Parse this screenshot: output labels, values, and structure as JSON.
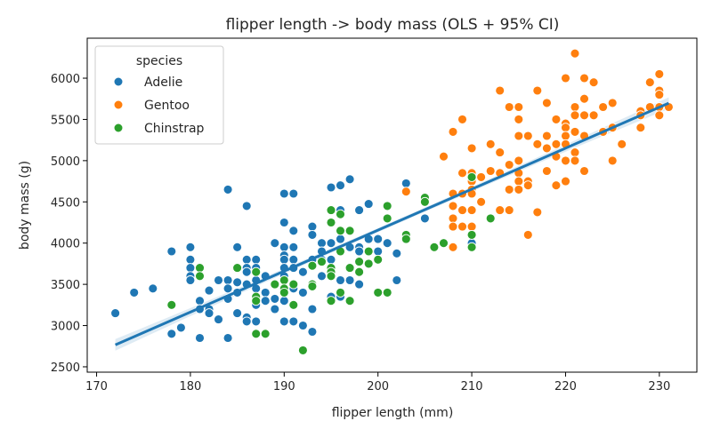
{
  "chart_data": {
    "type": "scatter",
    "title": "flipper length -> body mass (OLS + 95% CI)",
    "xlabel": "flipper length (mm)",
    "ylabel": "body mass (g)",
    "xlim": [
      169,
      234
    ],
    "ylim": [
      2435,
      6485
    ],
    "xticks": [
      170,
      180,
      190,
      200,
      210,
      220,
      230
    ],
    "yticks": [
      2500,
      3000,
      3500,
      4000,
      4500,
      5000,
      5500,
      6000
    ],
    "grid": false,
    "legend": {
      "title": "species",
      "placement": "top-left"
    },
    "series": [
      {
        "name": "Adelie",
        "color": "#1f77b4",
        "points": [
          [
            172,
            3150
          ],
          [
            174,
            3400
          ],
          [
            176,
            3450
          ],
          [
            178,
            3900
          ],
          [
            178,
            2900
          ],
          [
            179,
            2975
          ],
          [
            180,
            3950
          ],
          [
            180,
            3800
          ],
          [
            180,
            3700
          ],
          [
            180,
            3600
          ],
          [
            180,
            3550
          ],
          [
            181,
            3300
          ],
          [
            181,
            3200
          ],
          [
            181,
            2850
          ],
          [
            182,
            3425
          ],
          [
            182,
            3200
          ],
          [
            182,
            3150
          ],
          [
            183,
            3550
          ],
          [
            183,
            3075
          ],
          [
            184,
            4650
          ],
          [
            184,
            3550
          ],
          [
            184,
            3450
          ],
          [
            184,
            3325
          ],
          [
            184,
            2850
          ],
          [
            185,
            3950
          ],
          [
            185,
            3700
          ],
          [
            185,
            3525
          ],
          [
            185,
            3400
          ],
          [
            185,
            3150
          ],
          [
            186,
            4450
          ],
          [
            186,
            3800
          ],
          [
            186,
            3700
          ],
          [
            186,
            3650
          ],
          [
            186,
            3500
          ],
          [
            186,
            3100
          ],
          [
            186,
            3050
          ],
          [
            187,
            3800
          ],
          [
            187,
            3700
          ],
          [
            187,
            3550
          ],
          [
            187,
            3450
          ],
          [
            187,
            3300
          ],
          [
            187,
            3250
          ],
          [
            187,
            3050
          ],
          [
            188,
            3600
          ],
          [
            188,
            3400
          ],
          [
            188,
            3300
          ],
          [
            188,
            2900
          ],
          [
            189,
            4000
          ],
          [
            189,
            3500
          ],
          [
            189,
            3325
          ],
          [
            189,
            3200
          ],
          [
            190,
            4600
          ],
          [
            190,
            4250
          ],
          [
            190,
            3950
          ],
          [
            190,
            3850
          ],
          [
            190,
            3800
          ],
          [
            190,
            3700
          ],
          [
            190,
            3600
          ],
          [
            190,
            3450
          ],
          [
            190,
            3300
          ],
          [
            190,
            3050
          ],
          [
            191,
            4600
          ],
          [
            191,
            4150
          ],
          [
            191,
            3950
          ],
          [
            191,
            3800
          ],
          [
            191,
            3700
          ],
          [
            191,
            3450
          ],
          [
            191,
            3050
          ],
          [
            192,
            3650
          ],
          [
            192,
            3400
          ],
          [
            192,
            3000
          ],
          [
            193,
            4200
          ],
          [
            193,
            4100
          ],
          [
            193,
            3800
          ],
          [
            193,
            3500
          ],
          [
            193,
            3200
          ],
          [
            193,
            2925
          ],
          [
            194,
            4000
          ],
          [
            194,
            3900
          ],
          [
            194,
            3800
          ],
          [
            194,
            3600
          ],
          [
            195,
            4675
          ],
          [
            195,
            4400
          ],
          [
            195,
            4250
          ],
          [
            195,
            4000
          ],
          [
            195,
            3800
          ],
          [
            195,
            3650
          ],
          [
            195,
            3350
          ],
          [
            196,
            4700
          ],
          [
            196,
            4400
          ],
          [
            196,
            4050
          ],
          [
            196,
            3900
          ],
          [
            196,
            3550
          ],
          [
            196,
            3350
          ],
          [
            197,
            4775
          ],
          [
            197,
            4150
          ],
          [
            197,
            3950
          ],
          [
            197,
            3550
          ],
          [
            197,
            3300
          ],
          [
            198,
            4400
          ],
          [
            198,
            3950
          ],
          [
            198,
            3900
          ],
          [
            198,
            3500
          ],
          [
            199,
            4475
          ],
          [
            199,
            4050
          ],
          [
            200,
            4050
          ],
          [
            200,
            3900
          ],
          [
            201,
            4000
          ],
          [
            202,
            3875
          ],
          [
            202,
            3550
          ],
          [
            203,
            4725
          ],
          [
            205,
            4300
          ],
          [
            210,
            4000
          ]
        ]
      },
      {
        "name": "Gentoo",
        "color": "#ff7f0e",
        "points": [
          [
            203,
            4625
          ],
          [
            207,
            5050
          ],
          [
            208,
            5350
          ],
          [
            208,
            4600
          ],
          [
            208,
            4450
          ],
          [
            208,
            4300
          ],
          [
            208,
            4200
          ],
          [
            208,
            3950
          ],
          [
            209,
            5500
          ],
          [
            209,
            4850
          ],
          [
            209,
            4600
          ],
          [
            209,
            4400
          ],
          [
            209,
            4200
          ],
          [
            210,
            5150
          ],
          [
            210,
            4850
          ],
          [
            210,
            4750
          ],
          [
            210,
            4650
          ],
          [
            210,
            4600
          ],
          [
            210,
            4400
          ],
          [
            210,
            4200
          ],
          [
            210,
            4100
          ],
          [
            211,
            4800
          ],
          [
            211,
            4500
          ],
          [
            212,
            5200
          ],
          [
            212,
            4875
          ],
          [
            212,
            4300
          ],
          [
            213,
            5850
          ],
          [
            213,
            5100
          ],
          [
            213,
            4850
          ],
          [
            213,
            4400
          ],
          [
            214,
            5650
          ],
          [
            214,
            4950
          ],
          [
            214,
            4650
          ],
          [
            214,
            4400
          ],
          [
            215,
            5650
          ],
          [
            215,
            5500
          ],
          [
            215,
            5300
          ],
          [
            215,
            5000
          ],
          [
            215,
            4850
          ],
          [
            215,
            4750
          ],
          [
            215,
            4650
          ],
          [
            216,
            5300
          ],
          [
            216,
            4750
          ],
          [
            216,
            4700
          ],
          [
            216,
            4100
          ],
          [
            217,
            5850
          ],
          [
            217,
            5200
          ],
          [
            217,
            4375
          ],
          [
            218,
            5700
          ],
          [
            218,
            5300
          ],
          [
            218,
            5150
          ],
          [
            218,
            4875
          ],
          [
            219,
            5500
          ],
          [
            219,
            5200
          ],
          [
            219,
            5050
          ],
          [
            219,
            4700
          ],
          [
            220,
            6000
          ],
          [
            220,
            5450
          ],
          [
            220,
            5400
          ],
          [
            220,
            5300
          ],
          [
            220,
            5200
          ],
          [
            220,
            5000
          ],
          [
            220,
            4750
          ],
          [
            221,
            6300
          ],
          [
            221,
            5650
          ],
          [
            221,
            5550
          ],
          [
            221,
            5350
          ],
          [
            221,
            5100
          ],
          [
            221,
            5000
          ],
          [
            222,
            6000
          ],
          [
            222,
            5750
          ],
          [
            222,
            5550
          ],
          [
            222,
            5300
          ],
          [
            222,
            4875
          ],
          [
            223,
            5950
          ],
          [
            223,
            5550
          ],
          [
            224,
            5650
          ],
          [
            224,
            5350
          ],
          [
            225,
            5700
          ],
          [
            225,
            5400
          ],
          [
            225,
            5000
          ],
          [
            226,
            5200
          ],
          [
            228,
            5600
          ],
          [
            228,
            5550
          ],
          [
            228,
            5400
          ],
          [
            229,
            5950
          ],
          [
            229,
            5650
          ],
          [
            230,
            6050
          ],
          [
            230,
            5850
          ],
          [
            230,
            5800
          ],
          [
            230,
            5650
          ],
          [
            230,
            5550
          ],
          [
            231,
            5650
          ]
        ]
      },
      {
        "name": "Chinstrap",
        "color": "#2ca02c",
        "points": [
          [
            178,
            3250
          ],
          [
            181,
            3700
          ],
          [
            181,
            3600
          ],
          [
            185,
            3700
          ],
          [
            187,
            3650
          ],
          [
            187,
            3350
          ],
          [
            187,
            3300
          ],
          [
            187,
            2900
          ],
          [
            188,
            2900
          ],
          [
            189,
            3500
          ],
          [
            190,
            3550
          ],
          [
            190,
            3450
          ],
          [
            190,
            3400
          ],
          [
            191,
            3500
          ],
          [
            191,
            3250
          ],
          [
            192,
            2700
          ],
          [
            193,
            3725
          ],
          [
            193,
            3500
          ],
          [
            193,
            3475
          ],
          [
            194,
            3775
          ],
          [
            195,
            4400
          ],
          [
            195,
            4250
          ],
          [
            195,
            3700
          ],
          [
            195,
            3650
          ],
          [
            195,
            3600
          ],
          [
            195,
            3300
          ],
          [
            196,
            4350
          ],
          [
            196,
            4150
          ],
          [
            196,
            3900
          ],
          [
            196,
            3400
          ],
          [
            197,
            4150
          ],
          [
            197,
            3700
          ],
          [
            197,
            3300
          ],
          [
            198,
            3775
          ],
          [
            198,
            3650
          ],
          [
            199,
            3900
          ],
          [
            199,
            3750
          ],
          [
            200,
            3800
          ],
          [
            200,
            3400
          ],
          [
            201,
            4450
          ],
          [
            201,
            4300
          ],
          [
            201,
            3400
          ],
          [
            203,
            4100
          ],
          [
            203,
            4050
          ],
          [
            205,
            4550
          ],
          [
            205,
            4500
          ],
          [
            206,
            3950
          ],
          [
            207,
            4000
          ],
          [
            210,
            4800
          ],
          [
            210,
            4100
          ],
          [
            210,
            3950
          ],
          [
            212,
            4300
          ]
        ]
      }
    ],
    "fit": {
      "type": "OLS",
      "color": "#1f77b4",
      "ci": 95,
      "x_range": [
        172,
        231
      ],
      "intercept": -5780.8,
      "slope": 49.69,
      "ci_halfwidth_ends": 70,
      "ci_halfwidth_center": 25
    }
  }
}
